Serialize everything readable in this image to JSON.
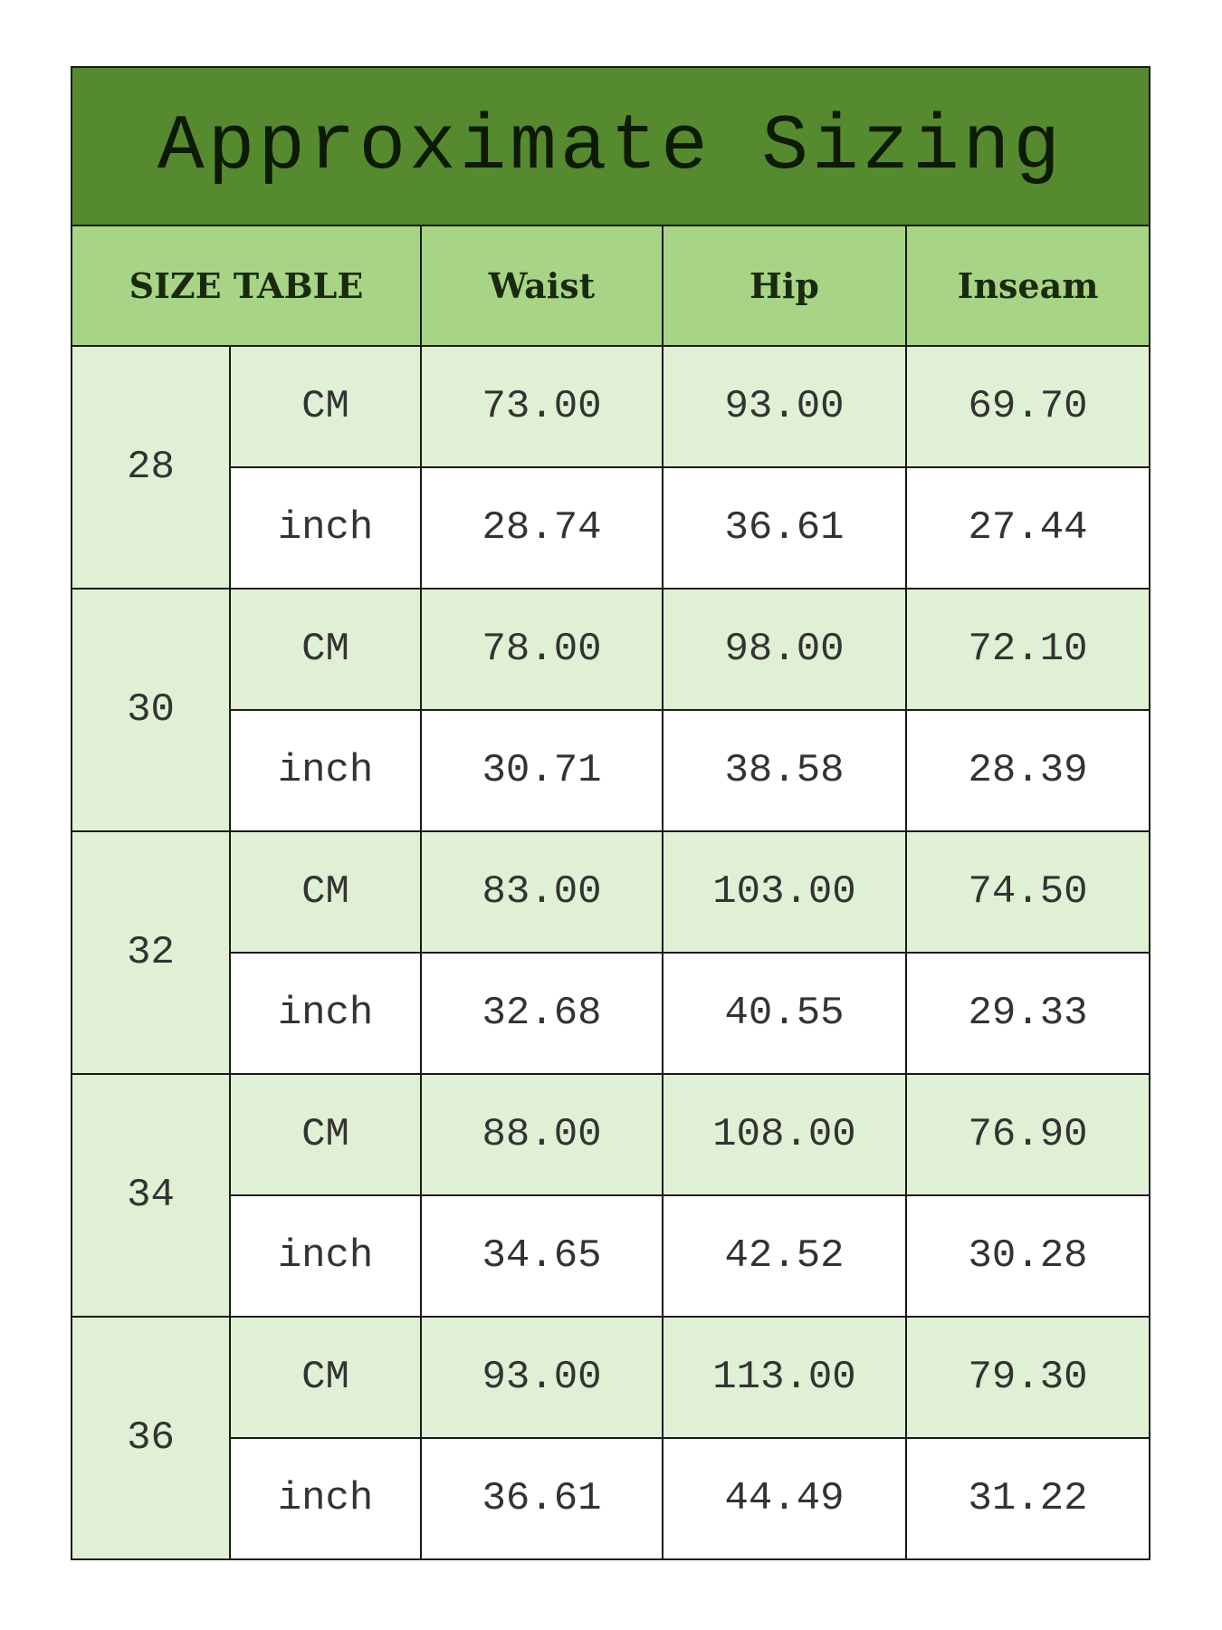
{
  "title": "Approximate Sizing",
  "headers": {
    "size_table": "SIZE TABLE",
    "waist": "Waist",
    "hip": "Hip",
    "inseam": "Inseam"
  },
  "colors": {
    "title_bg": "#568a2e",
    "header_bg": "#a8d585",
    "cm_row_bg": "#e0f0d4",
    "inch_row_bg": "#ffffff"
  },
  "rows": [
    {
      "size": "28",
      "cm": {
        "unit": "CM",
        "waist": "73.00",
        "hip": "93.00",
        "inseam": "69.70"
      },
      "inch": {
        "unit": "inch",
        "waist": "28.74",
        "hip": "36.61",
        "inseam": "27.44"
      }
    },
    {
      "size": "30",
      "cm": {
        "unit": "CM",
        "waist": "78.00",
        "hip": "98.00",
        "inseam": "72.10"
      },
      "inch": {
        "unit": "inch",
        "waist": "30.71",
        "hip": "38.58",
        "inseam": "28.39"
      }
    },
    {
      "size": "32",
      "cm": {
        "unit": "CM",
        "waist": "83.00",
        "hip": "103.00",
        "inseam": "74.50"
      },
      "inch": {
        "unit": "inch",
        "waist": "32.68",
        "hip": "40.55",
        "inseam": "29.33"
      }
    },
    {
      "size": "34",
      "cm": {
        "unit": "CM",
        "waist": "88.00",
        "hip": "108.00",
        "inseam": "76.90"
      },
      "inch": {
        "unit": "inch",
        "waist": "34.65",
        "hip": "42.52",
        "inseam": "30.28"
      }
    },
    {
      "size": "36",
      "cm": {
        "unit": "CM",
        "waist": "93.00",
        "hip": "113.00",
        "inseam": "79.30"
      },
      "inch": {
        "unit": "inch",
        "waist": "36.61",
        "hip": "44.49",
        "inseam": "31.22"
      }
    }
  ]
}
